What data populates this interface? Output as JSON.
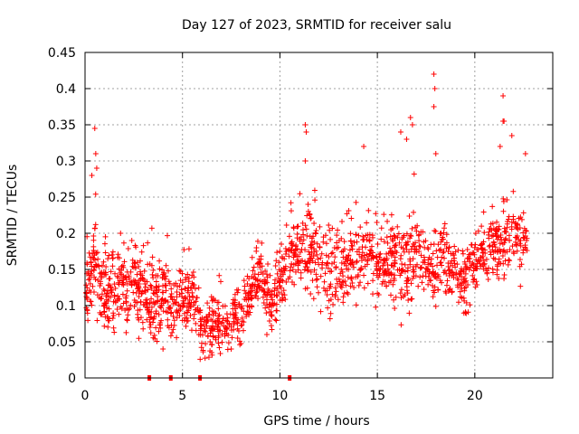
{
  "chart_data": {
    "type": "scatter",
    "title": "Day 127 of 2023, SRMTID for receiver salu",
    "xlabel": "GPS time / hours",
    "ylabel": "SRMTID / TECUs",
    "xlim": [
      0,
      24
    ],
    "ylim": [
      0,
      0.45
    ],
    "grid": true,
    "marker": "+",
    "marker_color": "#ff0000",
    "xticks": [
      0,
      5,
      10,
      15,
      20
    ],
    "xtick_labels": [
      "0",
      "5",
      "10",
      "15",
      "20"
    ],
    "yticks": [
      0,
      0.05,
      0.1,
      0.15,
      0.2,
      0.25,
      0.3,
      0.35,
      0.4,
      0.45
    ],
    "ytick_labels": [
      "0",
      "0.05",
      "0.1",
      "0.15",
      "0.2",
      "0.25",
      "0.3",
      "0.35",
      "0.4",
      "0.45"
    ],
    "zero_value_times": [
      3.3,
      4.4,
      5.9,
      10.5
    ],
    "envelope": [
      {
        "x": 0.0,
        "low": 0.07,
        "high": 0.18,
        "mid": 0.12
      },
      {
        "x": 0.4,
        "low": 0.08,
        "high": 0.28,
        "mid": 0.15
      },
      {
        "x": 0.8,
        "low": 0.07,
        "high": 0.22,
        "mid": 0.12
      },
      {
        "x": 1.5,
        "low": 0.06,
        "high": 0.23,
        "mid": 0.13
      },
      {
        "x": 2.5,
        "low": 0.06,
        "high": 0.21,
        "mid": 0.13
      },
      {
        "x": 3.3,
        "low": 0.05,
        "high": 0.22,
        "mid": 0.11
      },
      {
        "x": 4.0,
        "low": 0.06,
        "high": 0.22,
        "mid": 0.11
      },
      {
        "x": 4.5,
        "low": 0.05,
        "high": 0.19,
        "mid": 0.1
      },
      {
        "x": 5.0,
        "low": 0.06,
        "high": 0.18,
        "mid": 0.11
      },
      {
        "x": 5.5,
        "low": 0.05,
        "high": 0.2,
        "mid": 0.11
      },
      {
        "x": 6.0,
        "low": 0.03,
        "high": 0.16,
        "mid": 0.07
      },
      {
        "x": 7.0,
        "low": 0.03,
        "high": 0.14,
        "mid": 0.07
      },
      {
        "x": 8.0,
        "low": 0.04,
        "high": 0.15,
        "mid": 0.08
      },
      {
        "x": 8.5,
        "low": 0.08,
        "high": 0.19,
        "mid": 0.12
      },
      {
        "x": 9.0,
        "low": 0.1,
        "high": 0.2,
        "mid": 0.15
      },
      {
        "x": 9.5,
        "low": 0.05,
        "high": 0.17,
        "mid": 0.1
      },
      {
        "x": 10.0,
        "low": 0.06,
        "high": 0.18,
        "mid": 0.13
      },
      {
        "x": 10.5,
        "low": 0.12,
        "high": 0.24,
        "mid": 0.17
      },
      {
        "x": 11.0,
        "low": 0.13,
        "high": 0.27,
        "mid": 0.18
      },
      {
        "x": 11.7,
        "low": 0.1,
        "high": 0.27,
        "mid": 0.18
      },
      {
        "x": 12.5,
        "low": 0.07,
        "high": 0.24,
        "mid": 0.15
      },
      {
        "x": 13.0,
        "low": 0.09,
        "high": 0.23,
        "mid": 0.15
      },
      {
        "x": 14.0,
        "low": 0.1,
        "high": 0.26,
        "mid": 0.18
      },
      {
        "x": 14.6,
        "low": 0.08,
        "high": 0.24,
        "mid": 0.16
      },
      {
        "x": 15.5,
        "low": 0.1,
        "high": 0.23,
        "mid": 0.16
      },
      {
        "x": 16.3,
        "low": 0.06,
        "high": 0.27,
        "mid": 0.16
      },
      {
        "x": 16.9,
        "low": 0.1,
        "high": 0.3,
        "mid": 0.17
      },
      {
        "x": 17.5,
        "low": 0.09,
        "high": 0.21,
        "mid": 0.15
      },
      {
        "x": 18.0,
        "low": 0.07,
        "high": 0.26,
        "mid": 0.16
      },
      {
        "x": 18.6,
        "low": 0.1,
        "high": 0.24,
        "mid": 0.16
      },
      {
        "x": 19.5,
        "low": 0.07,
        "high": 0.2,
        "mid": 0.13
      },
      {
        "x": 20.0,
        "low": 0.12,
        "high": 0.23,
        "mid": 0.17
      },
      {
        "x": 20.8,
        "low": 0.12,
        "high": 0.24,
        "mid": 0.18
      },
      {
        "x": 21.3,
        "low": 0.13,
        "high": 0.27,
        "mid": 0.19
      },
      {
        "x": 21.8,
        "low": 0.13,
        "high": 0.28,
        "mid": 0.2
      },
      {
        "x": 22.3,
        "low": 0.12,
        "high": 0.25,
        "mid": 0.19
      },
      {
        "x": 22.7,
        "low": 0.16,
        "high": 0.24,
        "mid": 0.19
      }
    ],
    "outliers": [
      {
        "x": 0.5,
        "y": 0.345
      },
      {
        "x": 0.55,
        "y": 0.31
      },
      {
        "x": 0.6,
        "y": 0.29
      },
      {
        "x": 0.35,
        "y": 0.28
      },
      {
        "x": 11.3,
        "y": 0.35
      },
      {
        "x": 11.35,
        "y": 0.34
      },
      {
        "x": 11.3,
        "y": 0.3
      },
      {
        "x": 14.3,
        "y": 0.32
      },
      {
        "x": 16.2,
        "y": 0.34
      },
      {
        "x": 16.7,
        "y": 0.36
      },
      {
        "x": 16.8,
        "y": 0.35
      },
      {
        "x": 16.5,
        "y": 0.33
      },
      {
        "x": 17.9,
        "y": 0.42
      },
      {
        "x": 17.95,
        "y": 0.4
      },
      {
        "x": 17.9,
        "y": 0.375
      },
      {
        "x": 18.0,
        "y": 0.31
      },
      {
        "x": 21.45,
        "y": 0.39
      },
      {
        "x": 21.5,
        "y": 0.355
      },
      {
        "x": 21.45,
        "y": 0.355
      },
      {
        "x": 21.9,
        "y": 0.335
      },
      {
        "x": 21.3,
        "y": 0.32
      },
      {
        "x": 22.6,
        "y": 0.31
      },
      {
        "x": 7.5,
        "y": 0.04
      },
      {
        "x": 6.5,
        "y": 0.035
      },
      {
        "x": 4.0,
        "y": 0.04
      }
    ]
  }
}
